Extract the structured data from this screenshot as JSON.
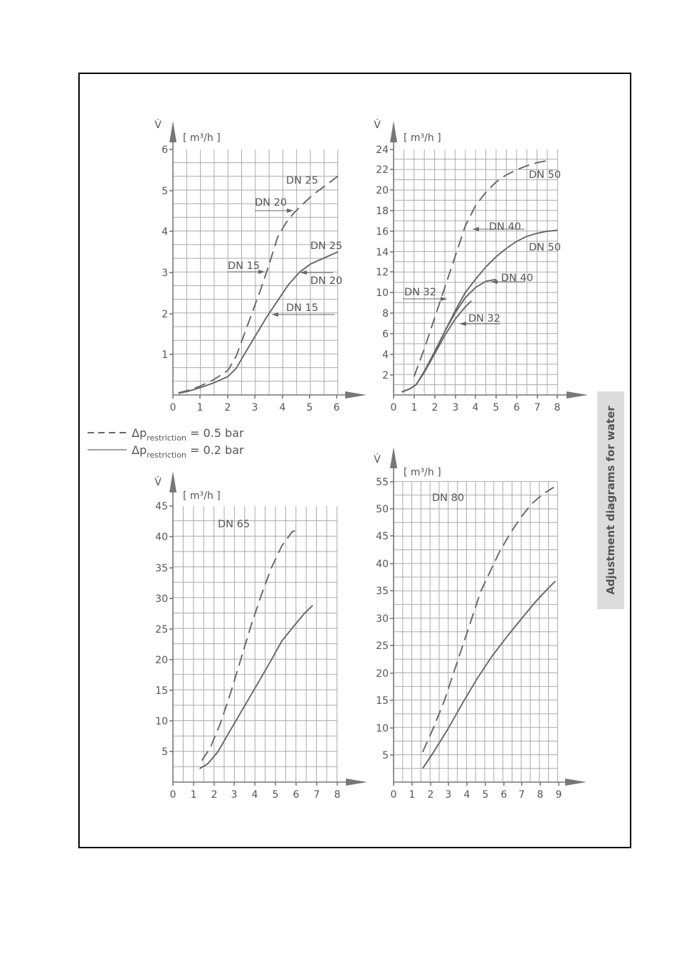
{
  "side_title": "Adjustment diagrams for water",
  "legend": {
    "items": [
      {
        "style": "dashed",
        "symbol": "Δp",
        "subscript": "restriction",
        "text": " = 0.5 bar"
      },
      {
        "style": "solid",
        "symbol": "Δp",
        "subscript": "restriction",
        "text": " = 0.2 bar"
      }
    ]
  },
  "colors": {
    "curve": "#666666",
    "grid": "#aaaaaa",
    "axis": "#777777",
    "text": "#555555",
    "tab": "#dcdcdc"
  },
  "chart_data": [
    {
      "type": "line",
      "ylabel": "V̇",
      "unit": "[ m³/h ]",
      "xlim": [
        0,
        6
      ],
      "ylim": [
        0,
        6
      ],
      "x_ticks": [
        "0",
        "1",
        "2",
        "3",
        "4",
        "5",
        "6"
      ],
      "y_ticks": [
        "1",
        "2",
        "3",
        "4",
        "5",
        "6"
      ],
      "grid": true,
      "annotations": [
        "DN 25",
        "DN 20",
        "DN 15",
        "DN 25",
        "DN 20",
        "DN 15"
      ],
      "series": [
        {
          "style": "dashed",
          "points": [
            [
              0.2,
              0.05
            ],
            [
              0.6,
              0.12
            ],
            [
              1,
              0.22
            ],
            [
              1.5,
              0.38
            ],
            [
              2,
              0.6
            ],
            [
              2.3,
              0.95
            ],
            [
              2.6,
              1.5
            ],
            [
              2.9,
              2.05
            ],
            [
              3.2,
              2.6
            ],
            [
              3.5,
              3.2
            ],
            [
              3.8,
              3.85
            ],
            [
              4.1,
              4.2
            ],
            [
              4.4,
              4.45
            ],
            [
              4.7,
              4.65
            ],
            [
              5.1,
              4.9
            ],
            [
              5.5,
              5.1
            ],
            [
              6,
              5.35
            ]
          ]
        },
        {
          "style": "solid",
          "points": [
            [
              0.2,
              0.04
            ],
            [
              0.6,
              0.1
            ],
            [
              1,
              0.18
            ],
            [
              1.5,
              0.3
            ],
            [
              2,
              0.45
            ],
            [
              2.3,
              0.65
            ],
            [
              2.6,
              1
            ],
            [
              3,
              1.45
            ],
            [
              3.4,
              1.9
            ],
            [
              3.8,
              2.3
            ],
            [
              4.2,
              2.7
            ],
            [
              4.6,
              3.0
            ],
            [
              5,
              3.2
            ],
            [
              5.5,
              3.35
            ],
            [
              6,
              3.5
            ]
          ]
        }
      ]
    },
    {
      "type": "line",
      "ylabel": "V̇",
      "unit": "[ m³/h ]",
      "xlim": [
        0,
        8
      ],
      "ylim": [
        0,
        24
      ],
      "x_ticks": [
        "0",
        "1",
        "2",
        "3",
        "4",
        "5",
        "6",
        "7",
        "8"
      ],
      "y_ticks": [
        "2",
        "4",
        "6",
        "8",
        "10",
        "12",
        "14",
        "16",
        "18",
        "20",
        "22",
        "24"
      ],
      "grid": true,
      "annotations": [
        "DN 50",
        "DN 40",
        "DN 50",
        "DN 40",
        "DN 32",
        "DN 32"
      ],
      "series": [
        {
          "style": "dashed",
          "points": [
            [
              1,
              1.8
            ],
            [
              1.5,
              4.5
            ],
            [
              2,
              7.5
            ],
            [
              2.5,
              10.5
            ],
            [
              3,
              13.5
            ],
            [
              3.5,
              16.5
            ],
            [
              4,
              18.5
            ],
            [
              4.5,
              19.8
            ],
            [
              5,
              20.8
            ],
            [
              5.5,
              21.5
            ],
            [
              6,
              22
            ],
            [
              6.5,
              22.4
            ],
            [
              7,
              22.7
            ],
            [
              7.5,
              22.9
            ]
          ]
        },
        {
          "style": "solid",
          "points": [
            [
              0.4,
              0.3
            ],
            [
              0.8,
              0.6
            ],
            [
              1.1,
              1
            ],
            [
              1.5,
              2.3
            ],
            [
              2,
              4.2
            ],
            [
              2.5,
              6.2
            ],
            [
              3,
              8.2
            ],
            [
              3.5,
              10
            ],
            [
              4,
              11.3
            ],
            [
              4.5,
              12.5
            ],
            [
              5,
              13.5
            ],
            [
              5.5,
              14.3
            ],
            [
              6,
              15
            ],
            [
              6.5,
              15.5
            ],
            [
              7,
              15.8
            ],
            [
              7.5,
              16
            ],
            [
              8,
              16.1
            ]
          ]
        },
        {
          "style": "solid",
          "points": [
            [
              0.4,
              0.3
            ],
            [
              0.8,
              0.6
            ],
            [
              1.1,
              1
            ],
            [
              1.5,
              2.3
            ],
            [
              2,
              4.2
            ],
            [
              2.5,
              6.2
            ],
            [
              3,
              8
            ],
            [
              3.5,
              9.5
            ],
            [
              4,
              10.5
            ],
            [
              4.5,
              11.1
            ],
            [
              5,
              11.3
            ]
          ]
        },
        {
          "style": "solid",
          "points": [
            [
              0.4,
              0.3
            ],
            [
              0.8,
              0.6
            ],
            [
              1.1,
              1
            ],
            [
              1.5,
              2.2
            ],
            [
              2,
              4
            ],
            [
              2.5,
              5.8
            ],
            [
              3,
              7.4
            ],
            [
              3.5,
              8.6
            ],
            [
              3.8,
              9.2
            ]
          ]
        }
      ]
    },
    {
      "type": "line",
      "title": "DN 65",
      "ylabel": "V̇",
      "unit": "[ m³/h ]",
      "xlim": [
        0,
        8
      ],
      "ylim": [
        0,
        45
      ],
      "x_ticks": [
        "0",
        "1",
        "2",
        "3",
        "4",
        "5",
        "6",
        "7",
        "8"
      ],
      "y_ticks": [
        "5",
        "10",
        "15",
        "20",
        "25",
        "30",
        "35",
        "40",
        "45"
      ],
      "grid": true,
      "series": [
        {
          "style": "dashed",
          "points": [
            [
              1.4,
              3.5
            ],
            [
              1.8,
              5.5
            ],
            [
              2.3,
              9.5
            ],
            [
              2.8,
              14.5
            ],
            [
              3.3,
              20
            ],
            [
              3.8,
              25.5
            ],
            [
              4.3,
              30.5
            ],
            [
              4.8,
              35
            ],
            [
              5.3,
              38.5
            ],
            [
              5.8,
              40.8
            ],
            [
              6.1,
              41.2
            ]
          ]
        },
        {
          "style": "solid",
          "points": [
            [
              1.3,
              2.2
            ],
            [
              1.7,
              3
            ],
            [
              2.2,
              5
            ],
            [
              2.8,
              8.5
            ],
            [
              3.5,
              12.5
            ],
            [
              4.2,
              16.5
            ],
            [
              4.8,
              20
            ],
            [
              5.3,
              23
            ],
            [
              5.9,
              25.5
            ],
            [
              6.4,
              27.5
            ],
            [
              6.8,
              28.8
            ]
          ]
        }
      ]
    },
    {
      "type": "line",
      "title": "DN 80",
      "ylabel": "V̇",
      "unit": "[ m³/h ]",
      "xlim": [
        0,
        9
      ],
      "ylim": [
        0,
        55
      ],
      "x_ticks": [
        "0",
        "1",
        "2",
        "3",
        "4",
        "5",
        "6",
        "7",
        "8",
        "9"
      ],
      "y_ticks": [
        "5",
        "10",
        "15",
        "20",
        "25",
        "30",
        "35",
        "40",
        "45",
        "50",
        "55"
      ],
      "grid": true,
      "series": [
        {
          "style": "dashed",
          "points": [
            [
              1.6,
              5.5
            ],
            [
              2.2,
              10
            ],
            [
              2.8,
              15
            ],
            [
              3.3,
              20
            ],
            [
              3.8,
              25
            ],
            [
              4.3,
              30
            ],
            [
              4.8,
              35
            ],
            [
              5.3,
              38.5
            ],
            [
              5.8,
              42
            ],
            [
              6.4,
              45.5
            ],
            [
              7,
              48.5
            ],
            [
              7.6,
              51
            ],
            [
              8.2,
              52.7
            ],
            [
              8.8,
              54
            ]
          ]
        },
        {
          "style": "solid",
          "points": [
            [
              1.6,
              2.5
            ],
            [
              2.2,
              5.5
            ],
            [
              3,
              9.8
            ],
            [
              3.8,
              14.5
            ],
            [
              4.6,
              19
            ],
            [
              5.4,
              23
            ],
            [
              6.2,
              26.5
            ],
            [
              7,
              29.8
            ],
            [
              7.8,
              33
            ],
            [
              8.5,
              35.5
            ],
            [
              8.9,
              36.8
            ]
          ]
        }
      ]
    }
  ]
}
